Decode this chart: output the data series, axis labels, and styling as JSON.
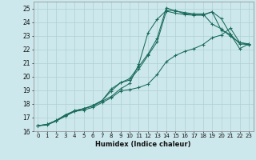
{
  "title": "",
  "xlabel": "Humidex (Indice chaleur)",
  "xlim": [
    -0.5,
    23.5
  ],
  "ylim": [
    16,
    25.5
  ],
  "xticks": [
    0,
    1,
    2,
    3,
    4,
    5,
    6,
    7,
    8,
    9,
    10,
    11,
    12,
    13,
    14,
    15,
    16,
    17,
    18,
    19,
    20,
    21,
    22,
    23
  ],
  "yticks": [
    16,
    17,
    18,
    19,
    20,
    21,
    22,
    23,
    24,
    25
  ],
  "background_color": "#cde8ec",
  "grid_color": "#aed0d5",
  "line_color": "#1a6b5a",
  "series": [
    [
      16.4,
      16.5,
      16.8,
      17.2,
      17.5,
      17.65,
      17.85,
      18.2,
      18.55,
      19.1,
      19.5,
      20.9,
      23.2,
      24.2,
      24.85,
      24.85,
      24.6,
      24.55,
      24.55,
      24.75,
      24.25,
      23.1,
      22.4,
      22.35
    ],
    [
      16.4,
      16.45,
      16.75,
      17.15,
      17.5,
      17.65,
      17.9,
      18.25,
      18.95,
      19.55,
      19.85,
      20.75,
      21.65,
      22.8,
      25.05,
      24.8,
      24.7,
      24.6,
      24.6,
      23.85,
      23.5,
      22.95,
      22.5,
      22.4
    ],
    [
      16.4,
      16.5,
      16.75,
      17.1,
      17.45,
      17.65,
      17.85,
      18.25,
      19.1,
      19.55,
      19.75,
      20.55,
      21.55,
      22.55,
      24.8,
      24.65,
      24.55,
      24.5,
      24.5,
      24.75,
      23.4,
      23.1,
      22.05,
      22.4
    ],
    [
      16.4,
      16.5,
      16.75,
      17.2,
      17.45,
      17.55,
      17.75,
      18.1,
      18.45,
      18.95,
      19.05,
      19.2,
      19.45,
      20.15,
      21.1,
      21.55,
      21.85,
      22.05,
      22.35,
      22.85,
      23.05,
      23.55,
      22.5,
      22.35
    ]
  ]
}
